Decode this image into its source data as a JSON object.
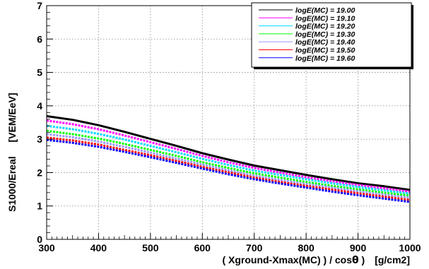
{
  "chart_data": {
    "type": "line",
    "xlabel_main": "( Xground-Xmax(MC) ) / cos",
    "xlabel_theta": "θ",
    "xlabel_close": " )",
    "xlabel_units": "[g/cm2]",
    "ylabel_main": "S1000/Ereal",
    "ylabel_units": "[VEM/EeV]",
    "xlim": [
      300,
      1000
    ],
    "ylim": [
      0,
      7
    ],
    "xticks": [
      300,
      400,
      500,
      600,
      700,
      800,
      900,
      1000
    ],
    "yticks": [
      0,
      1,
      2,
      3,
      4,
      5,
      6,
      7
    ],
    "grid": true,
    "legend_position": "top-right",
    "x": [
      300,
      350,
      400,
      450,
      500,
      550,
      600,
      650,
      700,
      750,
      800,
      850,
      900,
      950,
      1000
    ],
    "series": [
      {
        "name": "logE(MC) = 19.00",
        "color": "#000000",
        "style": "solid",
        "values": [
          3.69,
          3.58,
          3.42,
          3.22,
          3.01,
          2.8,
          2.58,
          2.39,
          2.21,
          2.07,
          1.93,
          1.8,
          1.68,
          1.59,
          1.48
        ]
      },
      {
        "name": "logE(MC) = 19.10",
        "color": "#ff00ff",
        "style": "dashed",
        "values": [
          3.56,
          3.45,
          3.3,
          3.11,
          2.91,
          2.71,
          2.5,
          2.31,
          2.14,
          2.0,
          1.86,
          1.74,
          1.63,
          1.53,
          1.43
        ]
      },
      {
        "name": "logE(MC) = 19.20",
        "color": "#00d8ff",
        "style": "dashed",
        "values": [
          3.4,
          3.3,
          3.16,
          2.99,
          2.8,
          2.61,
          2.41,
          2.23,
          2.06,
          1.93,
          1.8,
          1.68,
          1.57,
          1.47,
          1.37
        ]
      },
      {
        "name": "logE(MC) = 19.30",
        "color": "#00ff00",
        "style": "dashed",
        "values": [
          3.25,
          3.15,
          3.02,
          2.86,
          2.68,
          2.5,
          2.31,
          2.14,
          1.98,
          1.85,
          1.72,
          1.6,
          1.5,
          1.4,
          1.31
        ]
      },
      {
        "name": "logE(MC) = 19.40",
        "color": "#9999ff",
        "style": "dashed",
        "values": [
          3.15,
          3.06,
          2.93,
          2.77,
          2.6,
          2.42,
          2.24,
          2.07,
          1.91,
          1.78,
          1.66,
          1.55,
          1.44,
          1.34,
          1.25
        ]
      },
      {
        "name": "logE(MC) = 19.50",
        "color": "#ff0000",
        "style": "dashed",
        "values": [
          3.05,
          2.96,
          2.84,
          2.68,
          2.52,
          2.35,
          2.17,
          2.01,
          1.85,
          1.72,
          1.6,
          1.49,
          1.38,
          1.28,
          1.18
        ]
      },
      {
        "name": "logE(MC) = 19.60",
        "color": "#0000ff",
        "style": "dashed",
        "values": [
          2.98,
          2.89,
          2.77,
          2.62,
          2.46,
          2.29,
          2.12,
          1.95,
          1.8,
          1.67,
          1.55,
          1.43,
          1.32,
          1.22,
          1.12
        ]
      }
    ]
  }
}
